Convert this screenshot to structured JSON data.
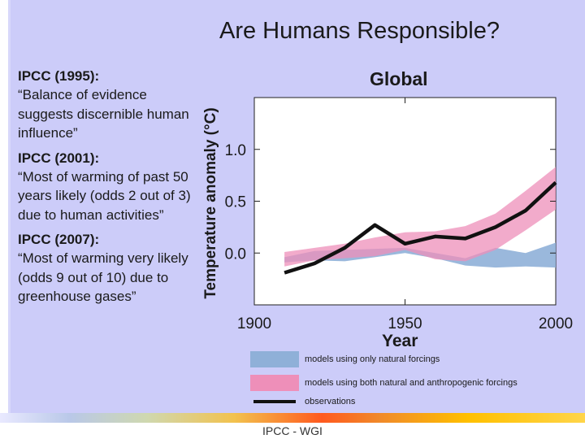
{
  "slide": {
    "title": "Are Humans Responsible?",
    "footer": "IPCC - WGI"
  },
  "quotes": [
    {
      "heading": "IPCC (1995):",
      "text": "“Balance of evidence suggests discernible human influence”"
    },
    {
      "heading": "IPCC (2001):",
      "text": "“Most of warming of past 50 years likely (odds 2 out of 3) due to human activities”"
    },
    {
      "heading": "IPCC (2007):",
      "text": "“Most of warming very likely (odds 9 out of 10) due to greenhouse gases”"
    }
  ],
  "chart_data": {
    "type": "line",
    "title": "Global",
    "xlabel": "Year",
    "ylabel": "Temperature anomaly (°C)",
    "xlim": [
      1900,
      2000
    ],
    "ylim": [
      -0.5,
      1.5
    ],
    "x_ticks": [
      1900,
      1950,
      2000
    ],
    "x_tick_labels": [
      "1900",
      "1950",
      "2000"
    ],
    "y_ticks": [
      0.0,
      0.5,
      1.0
    ],
    "y_tick_labels": [
      "0.0",
      "0.5",
      "1.0"
    ],
    "colors": {
      "natural": "#8fb0d8",
      "anthropogenic": "#ee8fb9",
      "observations": "#111111"
    },
    "series": [
      {
        "name": "models using only natural forcings",
        "kind": "band",
        "x": [
          1910,
          1920,
          1930,
          1940,
          1950,
          1960,
          1970,
          1980,
          1990,
          2000
        ],
        "lower": [
          -0.09,
          -0.07,
          -0.08,
          -0.04,
          0.0,
          -0.05,
          -0.12,
          -0.14,
          -0.13,
          -0.14
        ],
        "upper": [
          -0.04,
          0.02,
          0.03,
          0.04,
          0.05,
          0.0,
          -0.05,
          0.05,
          0.0,
          0.1
        ]
      },
      {
        "name": "models using both natural and anthropogenic forcings",
        "kind": "band",
        "x": [
          1910,
          1920,
          1930,
          1940,
          1950,
          1960,
          1970,
          1980,
          1990,
          2000
        ],
        "lower": [
          -0.13,
          -0.07,
          -0.05,
          -0.03,
          0.03,
          -0.06,
          -0.08,
          0.03,
          0.22,
          0.42
        ],
        "upper": [
          0.01,
          0.05,
          0.09,
          0.15,
          0.2,
          0.21,
          0.26,
          0.38,
          0.6,
          0.83
        ]
      },
      {
        "name": "observations",
        "kind": "line",
        "x": [
          1910,
          1920,
          1930,
          1940,
          1945,
          1950,
          1960,
          1970,
          1980,
          1990,
          2000
        ],
        "values": [
          -0.19,
          -0.1,
          0.05,
          0.27,
          0.18,
          0.09,
          0.16,
          0.14,
          0.25,
          0.41,
          0.68
        ]
      }
    ]
  }
}
